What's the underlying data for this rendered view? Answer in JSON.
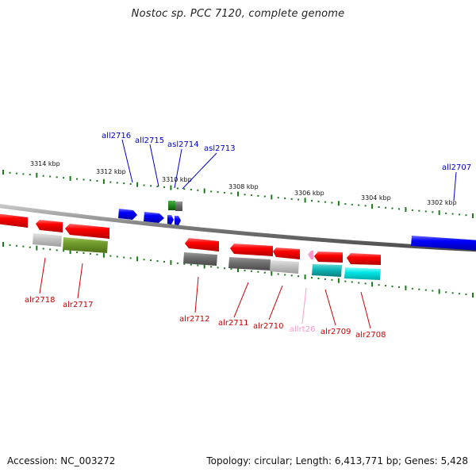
{
  "title": "Nostoc sp. PCC 7120, complete genome",
  "footer": {
    "accession": "Accession: NC_003272",
    "summary": "Topology: circular; Length: 6,413,771 bp; Genes: 5,428"
  },
  "scale_ticks": [
    "3314 kbp",
    "3312 kbp",
    "3310 kbp",
    "3308 kbp",
    "3306 kbp",
    "3304 kbp",
    "3302 kbp"
  ],
  "genes": [
    {
      "id": "all2716",
      "strand": "reverse",
      "color": "#0000ee"
    },
    {
      "id": "all2715",
      "strand": "reverse",
      "color": "#0000ee"
    },
    {
      "id": "asl2714",
      "strand": "reverse",
      "color": "#0000ee"
    },
    {
      "id": "asl2713",
      "strand": "reverse",
      "color": "#0000ee"
    },
    {
      "id": "all2707",
      "strand": "reverse",
      "color": "#0000ee"
    },
    {
      "id": "alr2718",
      "strand": "forward",
      "color": "#cc0000"
    },
    {
      "id": "alr2717",
      "strand": "forward",
      "color": "#cc0000"
    },
    {
      "id": "alr2712",
      "strand": "forward",
      "color": "#cc0000"
    },
    {
      "id": "alr2711",
      "strand": "forward",
      "color": "#cc0000"
    },
    {
      "id": "alr2710",
      "strand": "forward",
      "color": "#cc0000"
    },
    {
      "id": "allrt26",
      "strand": "forward",
      "color": "#ee99bb"
    },
    {
      "id": "alr2709",
      "strand": "forward",
      "color": "#cc0000"
    },
    {
      "id": "alr2708",
      "strand": "forward",
      "color": "#cc0000"
    }
  ],
  "colors": {
    "forward_gene": "#ff0000",
    "reverse_gene": "#0000ff",
    "trna": "#ff99cc",
    "axis": "#888888",
    "tick_dots": "#1a7a1a"
  }
}
